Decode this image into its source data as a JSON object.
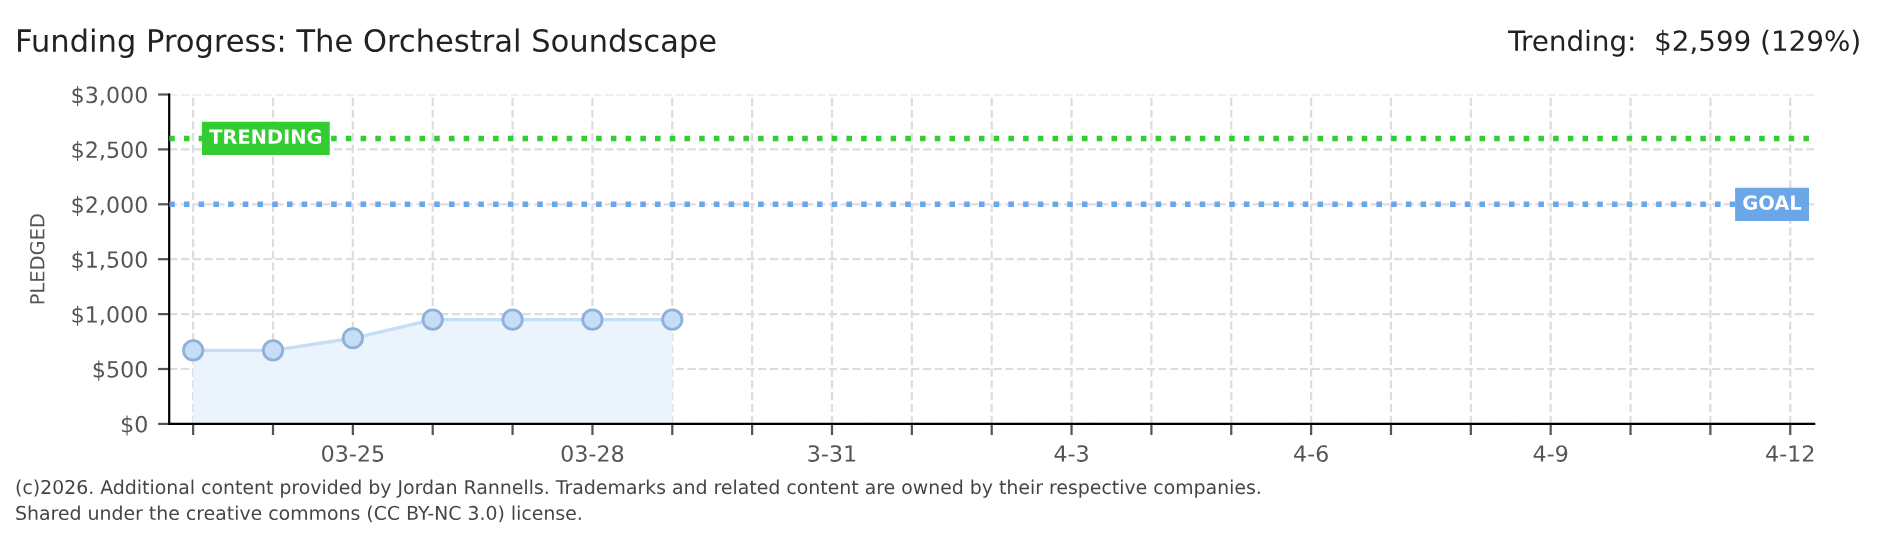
{
  "chart_data": {
    "type": "area",
    "title": "Funding Progress: The Orchestral Soundscape",
    "subtitle": "Trending:  $2,599 (129%)",
    "ylabel": "PLEDGED",
    "categories": [
      null,
      null,
      "03-25",
      null,
      null,
      "03-28",
      null,
      null,
      "3-31",
      null,
      null,
      "4-3",
      null,
      null,
      "4-6",
      null,
      null,
      "4-9",
      null,
      null,
      "4-12"
    ],
    "series": [
      {
        "color": "#c5ddf7",
        "values": [
          670,
          670,
          780,
          950,
          950,
          950,
          950,
          null,
          null,
          null,
          null,
          null,
          null,
          null,
          null,
          null,
          null,
          null,
          null,
          null,
          null
        ]
      }
    ],
    "ylim": [
      0,
      3000
    ],
    "yticks": [
      {
        "value": 0,
        "label": "$0"
      },
      {
        "value": 500,
        "label": "$500"
      },
      {
        "value": 1000,
        "label": "$1,000"
      },
      {
        "value": 1500,
        "label": "$1,500"
      },
      {
        "value": 2000,
        "label": "$2,000"
      },
      {
        "value": 2500,
        "label": "$2,500"
      },
      {
        "value": 3000,
        "label": "$3,000"
      }
    ],
    "ref_lines": [
      {
        "axis": "y",
        "value": 2600,
        "label": "TRENDING",
        "color": "#33cc33",
        "line_style": "dotted"
      },
      {
        "axis": "y",
        "value": 2000,
        "label": "GOAL",
        "color": "#6aa6e8",
        "line_style": "dotted"
      }
    ],
    "annotations": [
      "(c)2026. Additional content provided by Jordan Rannells. Trademarks and related content are owned by their respective companies.",
      "Shared under the creative commons (CC BY-NC 3.0) license."
    ],
    "grid": true,
    "marker": "circle"
  }
}
